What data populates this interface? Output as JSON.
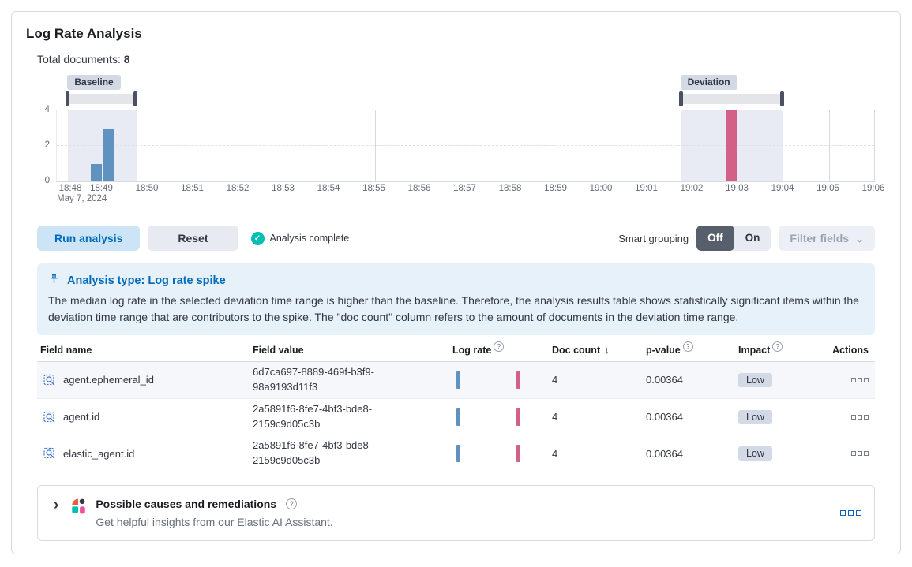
{
  "icons": {
    "question": "?",
    "sort_desc": "↓",
    "chevron_down": "⌄",
    "chevron_right": "›",
    "check": "✓"
  },
  "colors": {
    "primary_blue": "#006BB8",
    "success_teal": "#00BFB3",
    "bar_baseline_blue": "#6092C0",
    "bar_deviation_pink": "#D36086",
    "callout_bg": "#E6F1FA",
    "badge_bg": "#D3DAE6",
    "panel_border": "#D3DAE6",
    "brush_handle": "#4A5160"
  },
  "header": {
    "title": "Log Rate Analysis",
    "total_documents_label": "Total documents:",
    "total_documents_value": "8"
  },
  "chart": {
    "baseline_label": "Baseline",
    "deviation_label": "Deviation",
    "x_ticks": [
      "18:48",
      "18:49",
      "18:50",
      "18:51",
      "18:52",
      "18:53",
      "18:54",
      "18:55",
      "18:56",
      "18:57",
      "18:58",
      "18:59",
      "19:00",
      "19:01",
      "19:02",
      "19:03",
      "19:04",
      "19:05",
      "19:06"
    ],
    "x_date_label": "May 7, 2024",
    "y_ticks": [
      4,
      2,
      0
    ]
  },
  "chart_data": {
    "type": "bar",
    "title": "Document count histogram with baseline and deviation selections",
    "x_unit": "time HH:MM on May 7, 2024",
    "x_range": [
      "18:48",
      "19:06"
    ],
    "ylim": [
      0,
      4
    ],
    "y_gridlines": [
      2,
      4
    ],
    "bars": [
      {
        "time": "18:48:45",
        "value": 1,
        "series": "baseline"
      },
      {
        "time": "18:49:00",
        "value": 3,
        "series": "baseline"
      },
      {
        "time": "19:02:45",
        "value": 4,
        "series": "deviation"
      }
    ],
    "baseline_window": [
      "18:48:15",
      "18:49:45"
    ],
    "deviation_window": [
      "19:01:45",
      "19:04:00"
    ],
    "vertical_gridlines": [
      "18:55",
      "19:00",
      "19:05"
    ]
  },
  "toolbar": {
    "run_analysis_label": "Run analysis",
    "reset_label": "Reset",
    "status_label": "Analysis complete",
    "smart_grouping_label": "Smart grouping",
    "off_label": "Off",
    "on_label": "On",
    "filter_fields_label": "Filter fields"
  },
  "callout": {
    "title": "Analysis type: Log rate spike",
    "body": "The median log rate in the selected deviation time range is higher than the baseline. Therefore, the analysis results table shows statistically significant items within the deviation time range that are contributors to the spike. The \"doc count\" column refers to the amount of documents in the deviation time range."
  },
  "table": {
    "headers": {
      "field_name": "Field name",
      "field_value": "Field value",
      "log_rate": "Log rate",
      "doc_count": "Doc count",
      "p_value": "p-value",
      "impact": "Impact",
      "actions": "Actions"
    },
    "rows": [
      {
        "field_name": "agent.ephemeral_id",
        "field_value": "6d7ca697-8889-469f-b3f9-98a9193d11f3",
        "doc_count": "4",
        "p_value": "0.00364",
        "impact": "Low"
      },
      {
        "field_name": "agent.id",
        "field_value": "2a5891f6-8fe7-4bf3-bde8-2159c9d05c3b",
        "doc_count": "4",
        "p_value": "0.00364",
        "impact": "Low"
      },
      {
        "field_name": "elastic_agent.id",
        "field_value": "2a5891f6-8fe7-4bf3-bde8-2159c9d05c3b",
        "doc_count": "4",
        "p_value": "0.00364",
        "impact": "Low"
      }
    ]
  },
  "footer": {
    "title": "Possible causes and remediations",
    "subtitle": "Get helpful insights from our Elastic AI Assistant."
  }
}
